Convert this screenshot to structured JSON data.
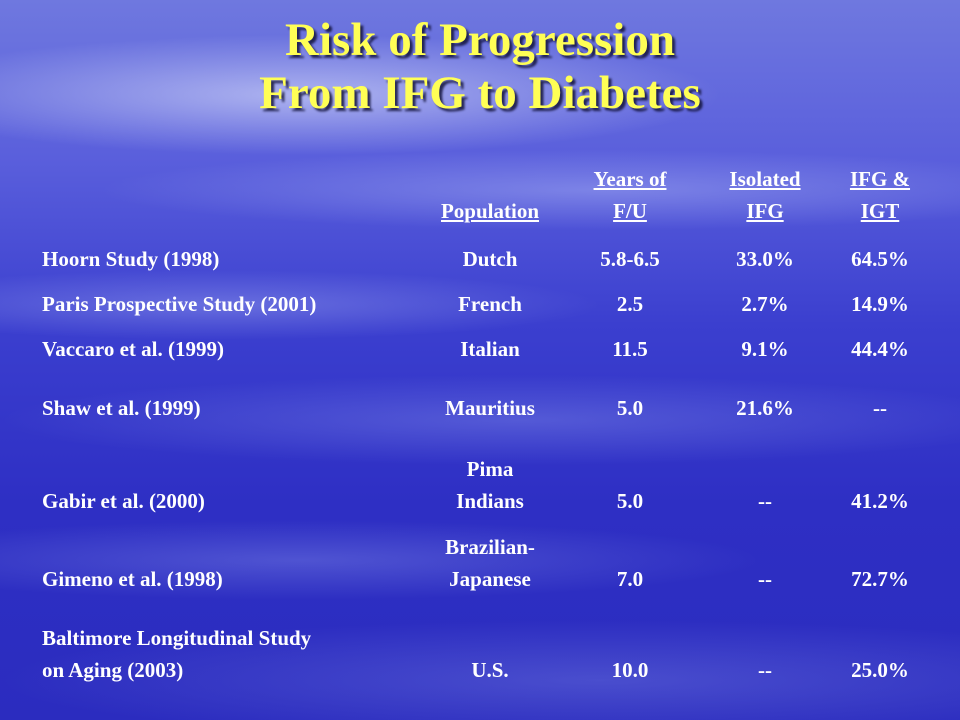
{
  "title": {
    "line1": "Risk of Progression",
    "line2": "From IFG to Diabetes"
  },
  "table": {
    "headers": {
      "population": [
        "Population"
      ],
      "years": [
        "Years of",
        "F/U"
      ],
      "isolated": [
        "Isolated",
        "IFG"
      ],
      "ifg_igt": [
        "IFG &",
        "IGT"
      ]
    },
    "rows": [
      {
        "study": [
          "Hoorn Study (1998)"
        ],
        "population": [
          "Dutch"
        ],
        "years": "5.8-6.5",
        "isolated_ifg": "33.0%",
        "ifg_igt": "64.5%"
      },
      {
        "study": [
          "Paris Prospective Study (2001)"
        ],
        "population": [
          "French"
        ],
        "years": "2.5",
        "isolated_ifg": "2.7%",
        "ifg_igt": "14.9%"
      },
      {
        "study": [
          "Vaccaro et al. (1999)"
        ],
        "population": [
          "Italian"
        ],
        "years": "11.5",
        "isolated_ifg": "9.1%",
        "ifg_igt": "44.4%"
      },
      {
        "study": [
          "Shaw et al. (1999)"
        ],
        "population": [
          "Mauritius"
        ],
        "years": "5.0",
        "isolated_ifg": "21.6%",
        "ifg_igt": "--"
      },
      {
        "study": [
          "Gabir et al. (2000)"
        ],
        "population": [
          "Pima",
          "Indians"
        ],
        "years": "5.0",
        "isolated_ifg": "--",
        "ifg_igt": "41.2%"
      },
      {
        "study": [
          "Gimeno et al. (1998)"
        ],
        "population": [
          "Brazilian-",
          "Japanese"
        ],
        "years": "7.0",
        "isolated_ifg": "--",
        "ifg_igt": "72.7%"
      },
      {
        "study": [
          "Baltimore Longitudinal Study",
          "on Aging (2003)"
        ],
        "population": [
          "U.S."
        ],
        "years": "10.0",
        "isolated_ifg": "--",
        "ifg_igt": "25.0%"
      }
    ]
  }
}
